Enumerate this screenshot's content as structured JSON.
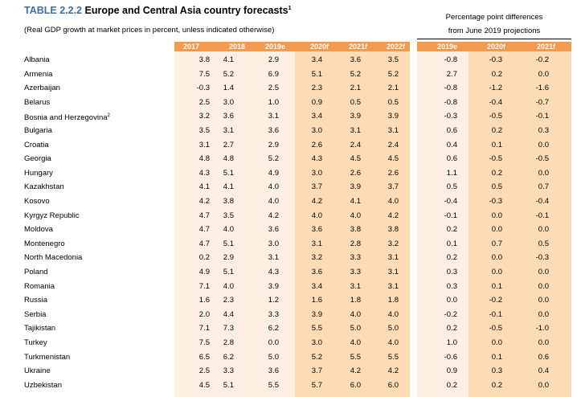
{
  "title": {
    "number": "TABLE 2.2.2",
    "text": "Europe and Central Asia country forecasts",
    "note": "1"
  },
  "subtitle": "(Real GDP growth at market prices in percent, unless indicated otherwise)",
  "diff_header": {
    "line1": "Percentage point differences",
    "line2": "from June 2019 projections"
  },
  "columns": [
    "2017",
    "2018",
    "2019e",
    "2020f",
    "2021f",
    "2022f"
  ],
  "diff_columns": [
    "2019e",
    "2020f",
    "2021f"
  ],
  "colors": {
    "header_bg": "#f19a50",
    "historical_bg": "#fdf0e2",
    "forecast_bg": "#fbdcb4",
    "title_number": "#3b6ea5"
  },
  "rows": [
    {
      "country": "Albania",
      "values": [
        "3.8",
        "4.1",
        "2.9",
        "3.4",
        "3.6",
        "3.5"
      ],
      "diffs": [
        "-0.8",
        "-0.3",
        "-0.2"
      ]
    },
    {
      "country": "Armenia",
      "values": [
        "7.5",
        "5.2",
        "6.9",
        "5.1",
        "5.2",
        "5.2"
      ],
      "diffs": [
        "2.7",
        "0.2",
        "0.0"
      ]
    },
    {
      "country": "Azerbaijan",
      "values": [
        "-0.3",
        "1.4",
        "2.5",
        "2.3",
        "2.1",
        "2.1"
      ],
      "diffs": [
        "-0.8",
        "-1.2",
        "-1.6"
      ]
    },
    {
      "country": "Belarus",
      "values": [
        "2.5",
        "3.0",
        "1.0",
        "0.9",
        "0.5",
        "0.5"
      ],
      "diffs": [
        "-0.8",
        "-0.4",
        "-0.7"
      ]
    },
    {
      "country": "Bosnia and Herzegovina",
      "note": "2",
      "values": [
        "3.2",
        "3.6",
        "3.1",
        "3.4",
        "3.9",
        "3.9"
      ],
      "diffs": [
        "-0.3",
        "-0.5",
        "-0.1"
      ]
    },
    {
      "country": "Bulgaria",
      "values": [
        "3.5",
        "3.1",
        "3.6",
        "3.0",
        "3.1",
        "3.1"
      ],
      "diffs": [
        "0.6",
        "0.2",
        "0.3"
      ]
    },
    {
      "country": "Croatia",
      "values": [
        "3.1",
        "2.7",
        "2.9",
        "2.6",
        "2.4",
        "2.4"
      ],
      "diffs": [
        "0.4",
        "0.1",
        "0.0"
      ]
    },
    {
      "country": "Georgia",
      "values": [
        "4.8",
        "4.8",
        "5.2",
        "4.3",
        "4.5",
        "4.5"
      ],
      "diffs": [
        "0.6",
        "-0.5",
        "-0.5"
      ]
    },
    {
      "country": "Hungary",
      "values": [
        "4.3",
        "5.1",
        "4.9",
        "3.0",
        "2.6",
        "2.6"
      ],
      "diffs": [
        "1.1",
        "0.2",
        "0.0"
      ]
    },
    {
      "country": "Kazakhstan",
      "values": [
        "4.1",
        "4.1",
        "4.0",
        "3.7",
        "3.9",
        "3.7"
      ],
      "diffs": [
        "0.5",
        "0.5",
        "0.7"
      ]
    },
    {
      "country": "Kosovo",
      "values": [
        "4.2",
        "3.8",
        "4.0",
        "4.2",
        "4.1",
        "4.0"
      ],
      "diffs": [
        "-0.4",
        "-0.3",
        "-0.4"
      ]
    },
    {
      "country": "Kyrgyz Republic",
      "values": [
        "4.7",
        "3.5",
        "4.2",
        "4.0",
        "4.0",
        "4.2"
      ],
      "diffs": [
        "-0.1",
        "0.0",
        "-0.1"
      ]
    },
    {
      "country": "Moldova",
      "values": [
        "4.7",
        "4.0",
        "3.6",
        "3.6",
        "3.8",
        "3.8"
      ],
      "diffs": [
        "0.2",
        "0.0",
        "0.0"
      ]
    },
    {
      "country": "Montenegro",
      "values": [
        "4.7",
        "5.1",
        "3.0",
        "3.1",
        "2.8",
        "3.2"
      ],
      "diffs": [
        "0.1",
        "0.7",
        "0.5"
      ]
    },
    {
      "country": "North Macedonia",
      "values": [
        "0.2",
        "2.9",
        "3.1",
        "3.2",
        "3.3",
        "3.1"
      ],
      "diffs": [
        "0.2",
        "0.0",
        "-0.3"
      ]
    },
    {
      "country": "Poland",
      "values": [
        "4.9",
        "5.1",
        "4.3",
        "3.6",
        "3.3",
        "3.1"
      ],
      "diffs": [
        "0.3",
        "0.0",
        "0.0"
      ]
    },
    {
      "country": "Romania",
      "values": [
        "7.1",
        "4.0",
        "3.9",
        "3.4",
        "3.1",
        "3.1"
      ],
      "diffs": [
        "0.3",
        "0.1",
        "0.0"
      ]
    },
    {
      "country": "Russia",
      "values": [
        "1.6",
        "2.3",
        "1.2",
        "1.6",
        "1.8",
        "1.8"
      ],
      "diffs": [
        "0.0",
        "-0.2",
        "0.0"
      ]
    },
    {
      "country": "Serbia",
      "values": [
        "2.0",
        "4.4",
        "3.3",
        "3.9",
        "4.0",
        "4.0"
      ],
      "diffs": [
        "-0.2",
        "-0.1",
        "0.0"
      ]
    },
    {
      "country": "Tajikistan",
      "values": [
        "7.1",
        "7.3",
        "6.2",
        "5.5",
        "5.0",
        "5.0"
      ],
      "diffs": [
        "0.2",
        "-0.5",
        "-1.0"
      ]
    },
    {
      "country": "Turkey",
      "values": [
        "7.5",
        "2.8",
        "0.0",
        "3.0",
        "4.0",
        "4.0"
      ],
      "diffs": [
        "1.0",
        "0.0",
        "0.0"
      ]
    },
    {
      "country": "Turkmenistan",
      "values": [
        "6.5",
        "6.2",
        "5.0",
        "5.2",
        "5.5",
        "5.5"
      ],
      "diffs": [
        "-0.6",
        "0.1",
        "0.6"
      ]
    },
    {
      "country": "Ukraine",
      "values": [
        "2.5",
        "3.3",
        "3.6",
        "3.7",
        "4.2",
        "4.2"
      ],
      "diffs": [
        "0.9",
        "0.3",
        "0.4"
      ]
    },
    {
      "country": "Uzbekistan",
      "values": [
        "4.5",
        "5.1",
        "5.5",
        "5.7",
        "6.0",
        "6.0"
      ],
      "diffs": [
        "0.2",
        "0.2",
        "0.0"
      ]
    }
  ]
}
